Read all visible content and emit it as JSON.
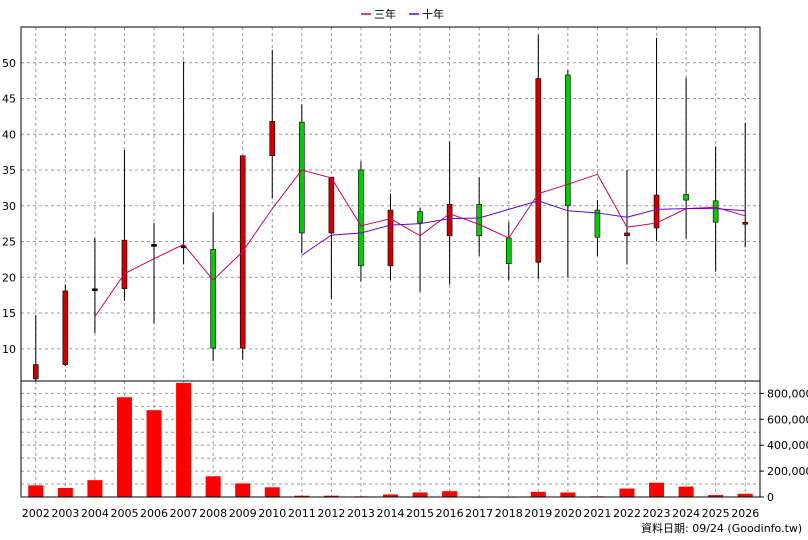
{
  "chart_data": {
    "type": "candlestick",
    "legend": {
      "position": "top-center",
      "items": [
        {
          "label": "三年",
          "color": "#cc0066"
        },
        {
          "label": "十年",
          "color": "#6600cc"
        }
      ]
    },
    "categories": [
      "2002",
      "2003",
      "2004",
      "2005",
      "2006",
      "2007",
      "2008",
      "2009",
      "2010",
      "2011",
      "2012",
      "2013",
      "2014",
      "2015",
      "2016",
      "2017",
      "2018",
      "2019",
      "2020",
      "2021",
      "2022",
      "2023",
      "2024",
      "2025",
      "2026"
    ],
    "price_axis": {
      "ticks": [
        10,
        15,
        20,
        25,
        30,
        35,
        40,
        45,
        50
      ],
      "range": [
        5.5,
        55
      ],
      "grid": true
    },
    "volume_axis": {
      "ticks": [
        "0",
        "200,000",
        "400,000",
        "600,000",
        "800,000"
      ],
      "tick_values": [
        0,
        200000,
        400000,
        600000,
        800000
      ],
      "range": [
        0,
        880000
      ],
      "grid": true
    },
    "candles": [
      {
        "year": "2002",
        "open": 7.8,
        "close": 5.8,
        "high": 14.7,
        "low": 5.5
      },
      {
        "year": "2003",
        "open": 18.1,
        "close": 7.8,
        "high": 19.0,
        "low": 7.6
      },
      {
        "year": "2004",
        "open": 18.4,
        "close": 18.4,
        "high": 25.5,
        "low": 12.2
      },
      {
        "year": "2005",
        "open": 25.2,
        "close": 18.4,
        "high": 37.8,
        "low": 16.7
      },
      {
        "year": "2006",
        "open": 24.6,
        "close": 24.6,
        "high": 27.6,
        "low": 13.5
      },
      {
        "year": "2007",
        "open": 24.4,
        "close": 24.4,
        "high": 50.2,
        "low": 21.8
      },
      {
        "year": "2008",
        "open": 10.1,
        "close": 23.9,
        "high": 29.1,
        "low": 8.3
      },
      {
        "year": "2009",
        "open": 37.0,
        "close": 10.1,
        "high": 37.0,
        "low": 8.5
      },
      {
        "year": "2010",
        "open": 41.8,
        "close": 37.0,
        "high": 51.8,
        "low": 31.0
      },
      {
        "year": "2011",
        "open": 26.2,
        "close": 41.7,
        "high": 44.2,
        "low": 23.4
      },
      {
        "year": "2012",
        "open": 34.0,
        "close": 26.2,
        "high": 34.0,
        "low": 17.0
      },
      {
        "year": "2013",
        "open": 21.6,
        "close": 35.0,
        "high": 36.2,
        "low": 19.4
      },
      {
        "year": "2014",
        "open": 29.4,
        "close": 21.6,
        "high": 31.7,
        "low": 19.6
      },
      {
        "year": "2015",
        "open": 27.6,
        "close": 29.2,
        "high": 29.7,
        "low": 18.0
      },
      {
        "year": "2016",
        "open": 30.2,
        "close": 25.8,
        "high": 39.0,
        "low": 19.0
      },
      {
        "year": "2017",
        "open": 25.8,
        "close": 30.2,
        "high": 34.0,
        "low": 23.0
      },
      {
        "year": "2018",
        "open": 21.9,
        "close": 25.5,
        "high": 27.7,
        "low": 19.6
      },
      {
        "year": "2019",
        "open": 47.8,
        "close": 22.1,
        "high": 53.9,
        "low": 19.8
      },
      {
        "year": "2020",
        "open": 30.0,
        "close": 48.3,
        "high": 49.0,
        "low": 20.0
      },
      {
        "year": "2021",
        "open": 25.6,
        "close": 29.4,
        "high": 30.8,
        "low": 23.0
      },
      {
        "year": "2022",
        "open": 26.2,
        "close": 25.8,
        "high": 35.0,
        "low": 21.8
      },
      {
        "year": "2023",
        "open": 31.5,
        "close": 26.9,
        "high": 53.5,
        "low": 25.0
      },
      {
        "year": "2024",
        "open": 30.8,
        "close": 31.6,
        "high": 47.9,
        "low": 25.4
      },
      {
        "year": "2025",
        "open": 27.7,
        "close": 30.7,
        "high": 38.3,
        "low": 20.8
      },
      {
        "year": "2026",
        "open": 27.7,
        "close": 27.5,
        "high": 41.6,
        "low": 24.2
      }
    ],
    "series": [
      {
        "name": "三年",
        "color": "#cc0066",
        "values": [
          null,
          null,
          14.5,
          20.5,
          22.6,
          24.6,
          19.6,
          23.6,
          29.6,
          35.0,
          33.9,
          27.2,
          28.2,
          25.8,
          28.9,
          27.4,
          25.5,
          31.7,
          33.0,
          34.4,
          27.0,
          27.6,
          29.6,
          29.8,
          28.6
        ]
      },
      {
        "name": "十年",
        "color": "#6600cc",
        "values": [
          null,
          null,
          null,
          null,
          null,
          null,
          null,
          null,
          null,
          23.1,
          25.9,
          26.2,
          27.3,
          27.5,
          28.2,
          28.3,
          29.5,
          30.7,
          29.3,
          29.0,
          28.4,
          29.5,
          29.6,
          29.6,
          29.3
        ]
      }
    ],
    "volume": [
      90000,
      70000,
      130000,
      770000,
      670000,
      880000,
      160000,
      105000,
      75000,
      10000,
      10000,
      5000,
      20000,
      35000,
      45000,
      3000,
      3000,
      40000,
      35000,
      5000,
      65000,
      110000,
      80000,
      15000,
      25000
    ],
    "colors": {
      "up": "#00cc00",
      "down": "#cc0000",
      "volume": "#ff0000",
      "wick": "#000000",
      "grid": "#9a9a9a"
    }
  },
  "footer": {
    "credit": "資料日期: 09/24  (Goodinfo.tw)"
  }
}
